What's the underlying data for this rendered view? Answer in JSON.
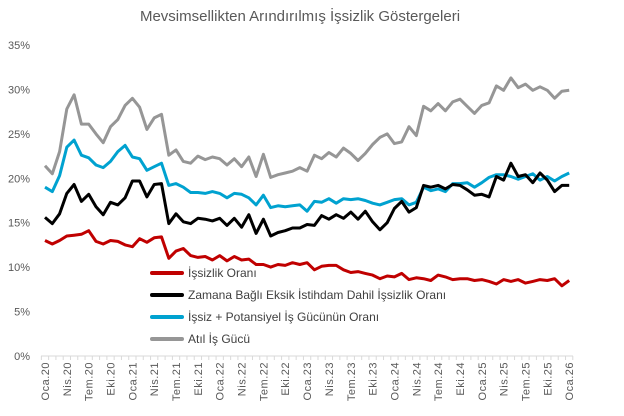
{
  "chart_data": {
    "type": "line",
    "title": "Mevsimsellikten Arındırılmış İşsizlik Göstergeleri",
    "xlabel": "",
    "ylabel": "",
    "ylim": [
      0,
      35
    ],
    "yticks": [
      "0%",
      "5%",
      "10%",
      "15%",
      "20%",
      "25%",
      "30%",
      "35%"
    ],
    "x_start": "Oca.20",
    "x_end": "Oca.26",
    "x_frequency": "monthly",
    "xtick_labels": [
      "Oca.20",
      "Nis.20",
      "Tem.20",
      "Eki.20",
      "Oca.21",
      "Nis.21",
      "Tem.21",
      "Eki.21",
      "Oca.22",
      "Nis.22",
      "Tem.22",
      "Eki.22",
      "Oca.23",
      "Nis.23",
      "Tem.23",
      "Eki.23",
      "Oca.24",
      "Nis.24",
      "Tem.24",
      "Eki.24",
      "Oca.25",
      "Nis.25",
      "Tem.25",
      "Eki.25",
      "Oca.26"
    ],
    "grid": false,
    "legend_position": "bottom-center",
    "series": [
      {
        "name": "İşsizlik Oranı",
        "color": "#c00000",
        "values": [
          13.0,
          12.6,
          13.0,
          13.5,
          13.6,
          13.7,
          14.1,
          12.9,
          12.6,
          13.0,
          12.9,
          12.5,
          12.3,
          13.2,
          12.8,
          13.3,
          13.4,
          11.0,
          11.8,
          12.1,
          11.3,
          11.1,
          11.2,
          10.8,
          11.3,
          10.7,
          11.2,
          10.8,
          10.9,
          10.3,
          10.3,
          10.0,
          10.3,
          10.2,
          10.5,
          10.3,
          10.5,
          9.7,
          10.1,
          10.2,
          10.2,
          9.7,
          9.4,
          9.5,
          9.3,
          9.1,
          8.7,
          9.0,
          8.9,
          9.3,
          8.6,
          8.8,
          8.7,
          8.5,
          9.1,
          8.9,
          8.6,
          8.7,
          8.7,
          8.5,
          8.6,
          8.4,
          8.1,
          8.6,
          8.4,
          8.6,
          8.2,
          8.4,
          8.6,
          8.5,
          8.7,
          7.9,
          8.5
        ]
      },
      {
        "name": "Zamana Bağlı Eksik İstihdam Dahil İşsizlik Oranı",
        "color": "#000000",
        "values": [
          15.6,
          14.9,
          16.0,
          18.3,
          19.3,
          17.4,
          18.2,
          16.8,
          15.9,
          17.3,
          17.0,
          17.8,
          19.7,
          19.7,
          17.9,
          19.3,
          19.4,
          14.9,
          16.0,
          15.1,
          14.9,
          15.5,
          15.4,
          15.2,
          15.5,
          14.7,
          15.5,
          14.5,
          15.9,
          13.8,
          15.4,
          13.5,
          13.9,
          14.1,
          14.4,
          14.4,
          14.8,
          14.7,
          15.8,
          15.4,
          15.9,
          15.5,
          16.2,
          15.4,
          16.3,
          15.1,
          14.2,
          15.0,
          16.6,
          17.4,
          16.2,
          16.7,
          19.2,
          19.0,
          19.2,
          18.8,
          19.3,
          19.2,
          18.7,
          18.1,
          18.2,
          17.9,
          20.2,
          19.8,
          21.7,
          20.2,
          20.4,
          19.5,
          20.6,
          19.8,
          18.5,
          19.2,
          19.2
        ]
      },
      {
        "name": "İşsiz + Potansiyel İş Gücünün Oranı",
        "color": "#00a2d0",
        "values": [
          19.0,
          18.5,
          20.3,
          23.5,
          24.3,
          22.6,
          22.3,
          21.5,
          21.2,
          21.9,
          23.0,
          23.7,
          22.4,
          22.2,
          20.9,
          21.3,
          21.7,
          19.2,
          19.4,
          19.0,
          18.4,
          18.4,
          18.3,
          18.5,
          18.3,
          17.8,
          18.3,
          18.2,
          17.8,
          17.0,
          18.1,
          16.7,
          16.9,
          16.8,
          16.9,
          17.0,
          16.3,
          17.4,
          17.3,
          17.7,
          17.2,
          17.7,
          17.6,
          17.7,
          17.5,
          17.2,
          17.0,
          17.3,
          17.6,
          17.7,
          17.0,
          17.3,
          19.0,
          18.6,
          18.8,
          18.5,
          19.4,
          19.4,
          19.5,
          19.0,
          19.5,
          20.1,
          20.4,
          20.4,
          20.2,
          19.9,
          20.2,
          20.5,
          19.8,
          20.2,
          19.7,
          20.2,
          20.6
        ]
      },
      {
        "name": "Atıl İş Gücü",
        "color": "#969696",
        "values": [
          21.4,
          20.5,
          23.0,
          27.8,
          29.4,
          26.1,
          26.1,
          25.0,
          24.0,
          25.8,
          26.6,
          28.2,
          29.0,
          28.0,
          25.5,
          26.8,
          27.2,
          22.6,
          23.2,
          21.9,
          21.7,
          22.5,
          22.1,
          22.4,
          22.2,
          21.5,
          22.2,
          21.3,
          22.4,
          20.2,
          22.7,
          20.1,
          20.4,
          20.6,
          20.8,
          21.2,
          20.8,
          22.6,
          22.2,
          22.9,
          22.4,
          23.4,
          22.8,
          22.0,
          22.8,
          23.8,
          24.6,
          25.0,
          23.9,
          24.1,
          25.8,
          24.8,
          28.1,
          27.6,
          28.4,
          27.6,
          28.6,
          28.9,
          28.1,
          27.3,
          28.2,
          28.5,
          30.4,
          29.9,
          31.3,
          30.2,
          30.6,
          29.9,
          30.3,
          29.9,
          29.0,
          29.8,
          29.9
        ]
      }
    ]
  }
}
